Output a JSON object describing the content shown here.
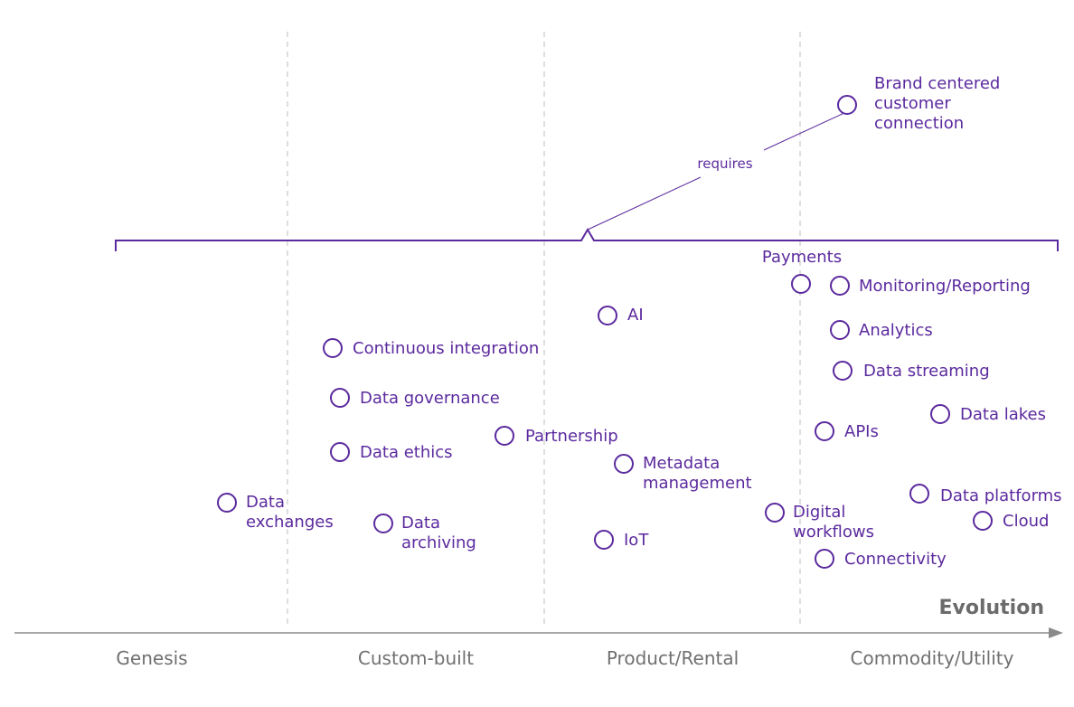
{
  "axis": {
    "title": "Evolution",
    "stages": [
      "Genesis",
      "Custom-built",
      "Product/Rental",
      "Commodity/Utility"
    ]
  },
  "annotation": "requires",
  "components": [
    {
      "id": "brand",
      "lines": [
        "Brand centered",
        "customer",
        "connection"
      ]
    },
    {
      "id": "payments",
      "lines": [
        "Payments"
      ]
    },
    {
      "id": "monitoring",
      "lines": [
        "Monitoring/Reporting"
      ]
    },
    {
      "id": "ai",
      "lines": [
        "AI"
      ]
    },
    {
      "id": "analytics",
      "lines": [
        "Analytics"
      ]
    },
    {
      "id": "ci",
      "lines": [
        "Continuous integration"
      ]
    },
    {
      "id": "streaming",
      "lines": [
        "Data streaming"
      ]
    },
    {
      "id": "governance",
      "lines": [
        "Data governance"
      ]
    },
    {
      "id": "apis",
      "lines": [
        "APIs"
      ]
    },
    {
      "id": "lakes",
      "lines": [
        "Data lakes"
      ]
    },
    {
      "id": "partnership",
      "lines": [
        "Partnership"
      ]
    },
    {
      "id": "ethics",
      "lines": [
        "Data ethics"
      ]
    },
    {
      "id": "metadata",
      "lines": [
        "Metadata",
        "management"
      ]
    },
    {
      "id": "exchanges",
      "lines": [
        "Data",
        "exchanges"
      ]
    },
    {
      "id": "platforms",
      "lines": [
        "Data platforms"
      ]
    },
    {
      "id": "digital",
      "lines": [
        "Digital",
        "workflows"
      ]
    },
    {
      "id": "archiving",
      "lines": [
        "Data",
        "archiving"
      ]
    },
    {
      "id": "cloud",
      "lines": [
        "Cloud"
      ]
    },
    {
      "id": "iot",
      "lines": [
        "IoT"
      ]
    },
    {
      "id": "connectivity",
      "lines": [
        "Connectivity"
      ]
    }
  ]
}
